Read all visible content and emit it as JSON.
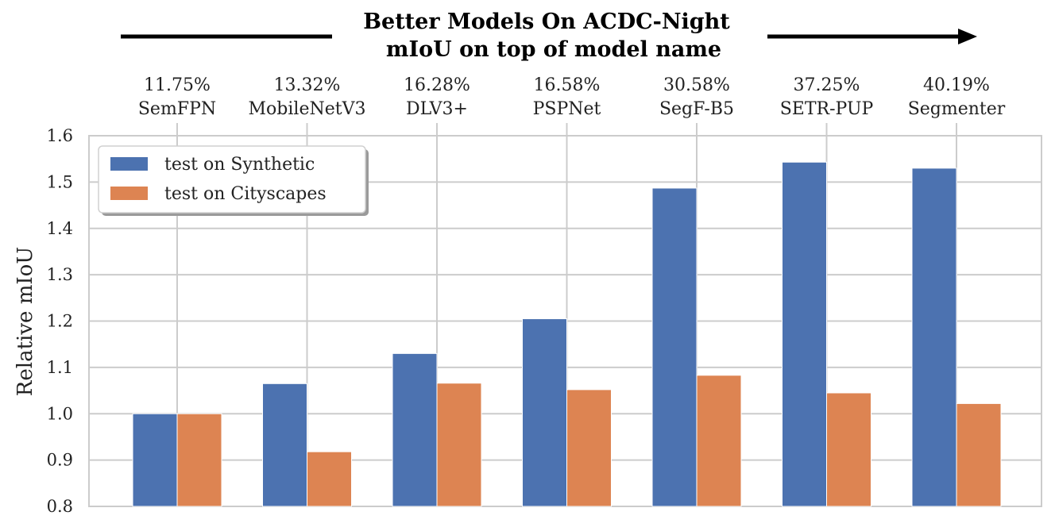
{
  "chart_data": {
    "type": "bar",
    "title": "Better Models On ACDC-Night",
    "subtitle": "mIoU on top of model name",
    "xlabel": "",
    "ylabel": "Relative mIoU",
    "ylim": [
      0.8,
      1.6
    ],
    "yticks": [
      "0.8",
      "0.9",
      "1.0",
      "1.1",
      "1.2",
      "1.3",
      "1.4",
      "1.5",
      "1.6"
    ],
    "grid": true,
    "legend_position": "top-left",
    "categories": [
      "SemFPN",
      "MobileNetV3",
      "DLV3+",
      "PSPNet",
      "SegF-B5",
      "SETR-PUP",
      "Segmenter"
    ],
    "category_miou": [
      "11.75%",
      "13.32%",
      "16.28%",
      "16.58%",
      "30.58%",
      "37.25%",
      "40.19%"
    ],
    "series": [
      {
        "name": "test on Synthetic",
        "color": "#4c72b0",
        "values": [
          1.0,
          1.065,
          1.13,
          1.205,
          1.487,
          1.543,
          1.53
        ]
      },
      {
        "name": "test on Cityscapes",
        "color": "#dd8452",
        "values": [
          1.0,
          0.918,
          1.066,
          1.052,
          1.083,
          1.045,
          1.022
        ]
      }
    ]
  }
}
